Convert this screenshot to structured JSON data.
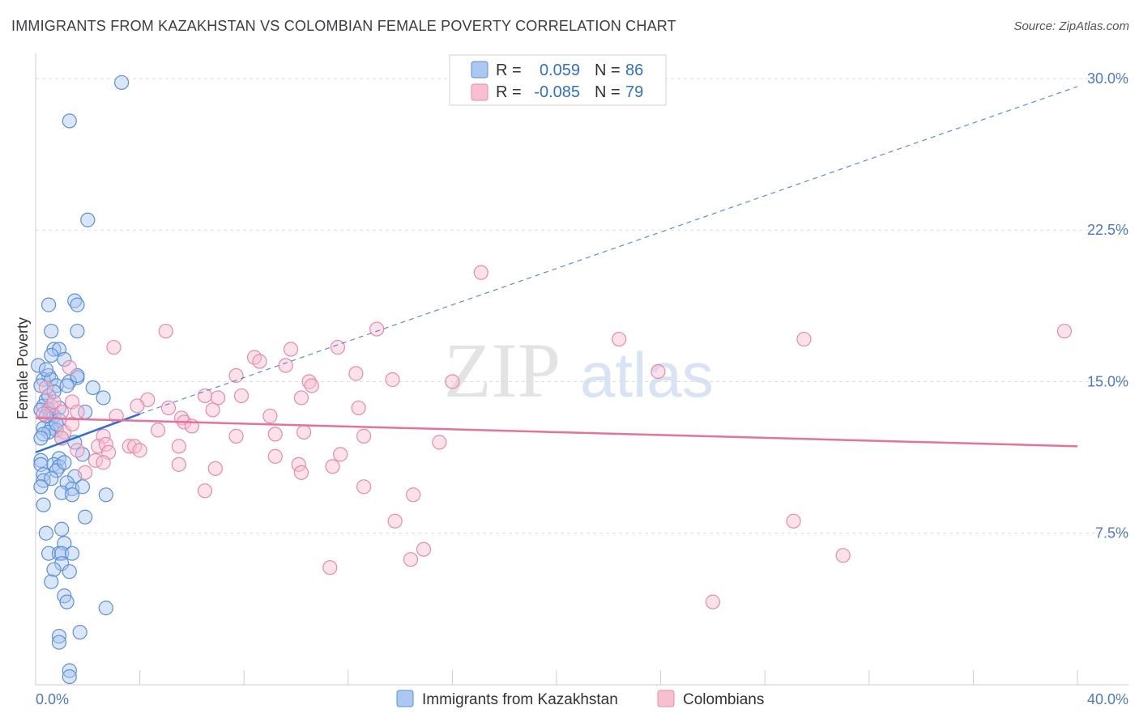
{
  "header": {
    "title": "IMMIGRANTS FROM KAZAKHSTAN VS COLOMBIAN FEMALE POVERTY CORRELATION CHART",
    "source": "Source: ZipAtlas.com"
  },
  "watermark": {
    "zip": "ZIP",
    "atlas": "atlas"
  },
  "colors": {
    "blue_fill": "#aac8f0",
    "blue_stroke": "#5b8fd8",
    "blue_line": "#2f6fd0",
    "pink_fill": "#f7bfd0",
    "pink_stroke": "#e88aaa",
    "pink_line": "#e8709a",
    "grid": "#dddddd",
    "axis_text": "#4b79c4"
  },
  "stats_legend": [
    {
      "r_label": "R =",
      "r_value": "0.059",
      "n_label": "N =",
      "n_value": "86"
    },
    {
      "r_label": "R =",
      "r_value": "-0.085",
      "n_label": "N =",
      "n_value": "79"
    }
  ],
  "chart_data": {
    "type": "scatter",
    "title": "IMMIGRANTS FROM KAZAKHSTAN VS COLOMBIAN FEMALE POVERTY CORRELATION CHART",
    "xlabel": "",
    "ylabel": "Female Poverty",
    "xlim": [
      0,
      40
    ],
    "ylim": [
      0,
      31
    ],
    "x_tick_labels": [
      "0.0%",
      "40.0%"
    ],
    "y_ticks": [
      7.5,
      15.0,
      22.5,
      30.0
    ],
    "y_tick_labels": [
      "7.5%",
      "15.0%",
      "22.5%",
      "30.0%"
    ],
    "grid": true,
    "legend": [
      "Immigrants from Kazakhstan",
      "Colombians"
    ],
    "series": [
      {
        "name": "Immigrants from Kazakhstan",
        "r": 0.059,
        "n": 86,
        "trend_solid": [
          [
            0.0,
            11.5
          ],
          [
            4.0,
            13.4
          ]
        ],
        "trend_dashed": [
          [
            4.0,
            13.4
          ],
          [
            40.0,
            29.6
          ]
        ],
        "points": [
          [
            3.3,
            29.8
          ],
          [
            1.3,
            27.9
          ],
          [
            2.0,
            23.0
          ],
          [
            0.5,
            18.8
          ],
          [
            1.5,
            19.0
          ],
          [
            1.6,
            18.8
          ],
          [
            0.6,
            17.5
          ],
          [
            1.6,
            17.5
          ],
          [
            0.7,
            16.6
          ],
          [
            0.9,
            16.6
          ],
          [
            0.6,
            16.3
          ],
          [
            1.1,
            16.1
          ],
          [
            0.1,
            15.8
          ],
          [
            0.5,
            15.3
          ],
          [
            0.3,
            15.1
          ],
          [
            0.6,
            15.1
          ],
          [
            1.6,
            15.2
          ],
          [
            1.3,
            15.0
          ],
          [
            0.2,
            14.8
          ],
          [
            0.8,
            14.8
          ],
          [
            1.2,
            14.8
          ],
          [
            2.2,
            14.7
          ],
          [
            2.6,
            14.2
          ],
          [
            0.4,
            14.1
          ],
          [
            0.3,
            13.8
          ],
          [
            0.5,
            13.6
          ],
          [
            0.9,
            13.7
          ],
          [
            0.2,
            13.6
          ],
          [
            0.6,
            13.4
          ],
          [
            0.7,
            13.3
          ],
          [
            0.9,
            13.1
          ],
          [
            0.3,
            12.7
          ],
          [
            0.6,
            12.7
          ],
          [
            0.8,
            12.6
          ],
          [
            0.5,
            12.5
          ],
          [
            0.3,
            12.4
          ],
          [
            0.2,
            12.2
          ],
          [
            1.0,
            12.2
          ],
          [
            1.8,
            11.4
          ],
          [
            0.2,
            11.1
          ],
          [
            0.9,
            11.2
          ],
          [
            0.2,
            10.9
          ],
          [
            0.7,
            10.9
          ],
          [
            0.9,
            10.8
          ],
          [
            0.8,
            10.6
          ],
          [
            0.3,
            10.4
          ],
          [
            1.5,
            10.3
          ],
          [
            0.3,
            10.1
          ],
          [
            1.2,
            10.0
          ],
          [
            0.2,
            9.8
          ],
          [
            1.4,
            9.7
          ],
          [
            1.8,
            9.8
          ],
          [
            1.0,
            9.5
          ],
          [
            1.4,
            9.4
          ],
          [
            2.7,
            9.4
          ],
          [
            0.3,
            8.9
          ],
          [
            1.9,
            8.3
          ],
          [
            0.4,
            7.5
          ],
          [
            1.0,
            7.7
          ],
          [
            1.1,
            7.0
          ],
          [
            0.5,
            6.5
          ],
          [
            0.9,
            6.5
          ],
          [
            1.0,
            6.5
          ],
          [
            1.4,
            6.5
          ],
          [
            1.0,
            6.0
          ],
          [
            0.7,
            5.7
          ],
          [
            1.3,
            5.6
          ],
          [
            0.6,
            5.1
          ],
          [
            1.1,
            4.4
          ],
          [
            1.2,
            4.1
          ],
          [
            2.7,
            3.8
          ],
          [
            0.9,
            2.4
          ],
          [
            1.7,
            2.6
          ],
          [
            0.9,
            2.1
          ],
          [
            1.3,
            0.7
          ],
          [
            1.3,
            0.4
          ],
          [
            1.6,
            15.3
          ],
          [
            0.5,
            14.3
          ],
          [
            0.4,
            13.3
          ],
          [
            0.8,
            12.9
          ],
          [
            1.1,
            11.0
          ],
          [
            0.6,
            10.2
          ],
          [
            1.5,
            12.0
          ],
          [
            0.4,
            15.6
          ],
          [
            0.7,
            14.5
          ],
          [
            1.9,
            13.5
          ]
        ]
      },
      {
        "name": "Colombians",
        "r": -0.085,
        "n": 79,
        "trend_solid": [
          [
            0.0,
            13.2
          ],
          [
            40.0,
            11.8
          ]
        ],
        "points": [
          [
            17.1,
            20.4
          ],
          [
            39.5,
            17.5
          ],
          [
            5.0,
            17.5
          ],
          [
            13.1,
            17.6
          ],
          [
            22.4,
            17.1
          ],
          [
            29.5,
            17.1
          ],
          [
            3.0,
            16.7
          ],
          [
            11.6,
            16.7
          ],
          [
            9.8,
            16.6
          ],
          [
            8.4,
            16.2
          ],
          [
            8.6,
            16.0
          ],
          [
            9.6,
            15.8
          ],
          [
            1.3,
            15.7
          ],
          [
            7.7,
            15.3
          ],
          [
            12.3,
            15.4
          ],
          [
            23.9,
            15.5
          ],
          [
            10.5,
            15.0
          ],
          [
            13.7,
            15.1
          ],
          [
            16.0,
            15.0
          ],
          [
            10.6,
            14.8
          ],
          [
            0.4,
            14.7
          ],
          [
            6.5,
            14.3
          ],
          [
            7.0,
            14.2
          ],
          [
            7.9,
            14.3
          ],
          [
            10.2,
            14.2
          ],
          [
            4.3,
            14.1
          ],
          [
            5.1,
            13.7
          ],
          [
            0.6,
            13.8
          ],
          [
            1.4,
            14.0
          ],
          [
            3.9,
            13.8
          ],
          [
            6.8,
            13.6
          ],
          [
            12.4,
            13.7
          ],
          [
            1.6,
            13.5
          ],
          [
            0.3,
            13.4
          ],
          [
            9.0,
            13.3
          ],
          [
            3.1,
            13.3
          ],
          [
            5.6,
            13.2
          ],
          [
            5.7,
            13.0
          ],
          [
            6.0,
            12.8
          ],
          [
            4.7,
            12.6
          ],
          [
            1.1,
            12.5
          ],
          [
            2.6,
            12.3
          ],
          [
            7.7,
            12.3
          ],
          [
            9.2,
            12.4
          ],
          [
            10.3,
            12.5
          ],
          [
            12.6,
            12.3
          ],
          [
            1.0,
            12.2
          ],
          [
            15.5,
            12.0
          ],
          [
            2.4,
            11.8
          ],
          [
            2.7,
            11.9
          ],
          [
            3.6,
            11.8
          ],
          [
            3.8,
            11.8
          ],
          [
            4.0,
            11.6
          ],
          [
            1.6,
            11.6
          ],
          [
            5.5,
            11.8
          ],
          [
            2.8,
            11.5
          ],
          [
            9.2,
            11.3
          ],
          [
            11.7,
            11.4
          ],
          [
            2.3,
            11.1
          ],
          [
            5.5,
            10.9
          ],
          [
            10.1,
            10.9
          ],
          [
            11.4,
            10.8
          ],
          [
            6.9,
            10.7
          ],
          [
            1.9,
            10.5
          ],
          [
            10.2,
            10.5
          ],
          [
            2.6,
            11.0
          ],
          [
            6.5,
            9.6
          ],
          [
            12.6,
            9.8
          ],
          [
            14.5,
            9.4
          ],
          [
            13.8,
            8.1
          ],
          [
            29.1,
            8.1
          ],
          [
            14.9,
            6.7
          ],
          [
            14.4,
            6.2
          ],
          [
            31.0,
            6.4
          ],
          [
            11.3,
            5.8
          ],
          [
            26.0,
            4.1
          ],
          [
            1.0,
            13.5
          ],
          [
            1.4,
            12.9
          ],
          [
            0.7,
            14.0
          ]
        ]
      }
    ]
  }
}
